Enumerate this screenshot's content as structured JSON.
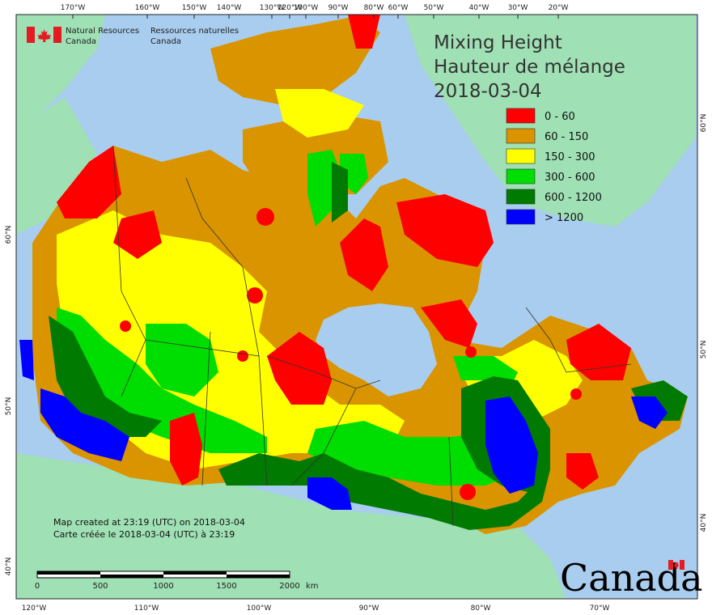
{
  "map": {
    "title_en": "Mixing Height",
    "title_fr": "Hauteur de mélange",
    "date": "2018-03-04",
    "agency": {
      "en_line1": "Natural Resources",
      "en_line2": "Canada",
      "fr_line1": "Ressources naturelles",
      "fr_line2": "Canada"
    },
    "wordmark": "Canada",
    "credit_en": "Map created at 23:19 (UTC) on 2018-03-04",
    "credit_fr": "Carte créée le 2018-03-04 (UTC) à 23:19",
    "top_ticks": [
      "170°W",
      "160°W",
      "150°W",
      "140°W",
      "130°W",
      "120°W",
      "100°W",
      "90°W",
      "80°W",
      "60°W",
      "50°W",
      "40°W",
      "30°W",
      "20°W"
    ],
    "bottom_ticks": [
      "120°W",
      "110°W",
      "100°W",
      "90°W",
      "80°W",
      "70°W"
    ],
    "left_ticks": [
      "60°N",
      "50°N",
      "40°N"
    ],
    "right_ticks": [
      "60°N",
      "50°N",
      "40°N"
    ],
    "scale_ticks": [
      "0",
      "500",
      "1000",
      "1500",
      "2000"
    ],
    "scale_unit": "km",
    "legend": [
      {
        "label": "0 - 60",
        "color": "#ff0000"
      },
      {
        "label": "60 - 150",
        "color": "#d99400"
      },
      {
        "label": "150 - 300",
        "color": "#ffff00"
      },
      {
        "label": "300 - 600",
        "color": "#00dd00"
      },
      {
        "label": "600 - 1200",
        "color": "#007a00"
      },
      {
        "label": "> 1200",
        "color": "#0000ff"
      }
    ],
    "colors": {
      "ocean": "#a9cdee",
      "land": "#9fe0b4",
      "flag_red": "#e31b23"
    }
  }
}
